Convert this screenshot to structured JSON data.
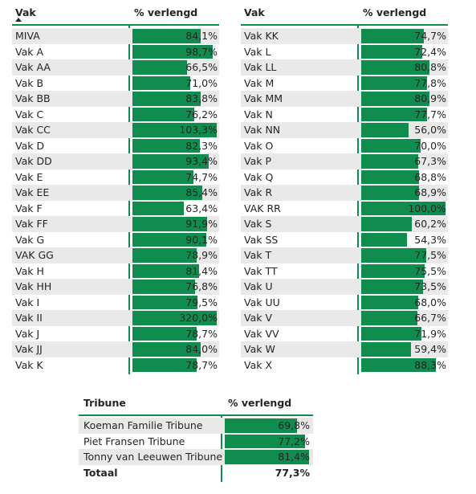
{
  "accent_color": "#118C4F",
  "row_alt_color": "#E9E9E9",
  "table_left": {
    "col_name": "Vak",
    "col_value": "% verlengd",
    "rows": [
      {
        "name": "MIVA",
        "value": "84,1%",
        "pct": 84.1
      },
      {
        "name": "Vak A",
        "value": "98,7%",
        "pct": 98.7
      },
      {
        "name": "Vak AA",
        "value": "66,5%",
        "pct": 66.5
      },
      {
        "name": "Vak B",
        "value": "71,0%",
        "pct": 71.0
      },
      {
        "name": "Vak BB",
        "value": "83,8%",
        "pct": 83.8
      },
      {
        "name": "Vak C",
        "value": "76,2%",
        "pct": 76.2
      },
      {
        "name": "Vak CC",
        "value": "103,3%",
        "pct": 103.3
      },
      {
        "name": "Vak D",
        "value": "82,3%",
        "pct": 82.3
      },
      {
        "name": "Vak DD",
        "value": "93,4%",
        "pct": 93.4
      },
      {
        "name": "Vak E",
        "value": "74,7%",
        "pct": 74.7
      },
      {
        "name": "Vak EE",
        "value": "85,4%",
        "pct": 85.4
      },
      {
        "name": "Vak F",
        "value": "63,4%",
        "pct": 63.4
      },
      {
        "name": "Vak FF",
        "value": "91,9%",
        "pct": 91.9
      },
      {
        "name": "Vak G",
        "value": "90,1%",
        "pct": 90.1
      },
      {
        "name": "VAK GG",
        "value": "78,9%",
        "pct": 78.9
      },
      {
        "name": "Vak H",
        "value": "81,4%",
        "pct": 81.4
      },
      {
        "name": "Vak HH",
        "value": "76,8%",
        "pct": 76.8
      },
      {
        "name": "Vak I",
        "value": "79,5%",
        "pct": 79.5
      },
      {
        "name": "Vak II",
        "value": "320,0%",
        "pct": 320.0
      },
      {
        "name": "Vak J",
        "value": "78,7%",
        "pct": 78.7
      },
      {
        "name": "Vak JJ",
        "value": "84,0%",
        "pct": 84.0
      },
      {
        "name": "Vak K",
        "value": "78,7%",
        "pct": 78.7
      }
    ]
  },
  "table_right": {
    "col_name": "Vak",
    "col_value": "% verlengd",
    "rows": [
      {
        "name": "Vak KK",
        "value": "74,7%",
        "pct": 74.7
      },
      {
        "name": "Vak L",
        "value": "72,4%",
        "pct": 72.4
      },
      {
        "name": "Vak LL",
        "value": "80,8%",
        "pct": 80.8
      },
      {
        "name": "Vak M",
        "value": "77,8%",
        "pct": 77.8
      },
      {
        "name": "Vak MM",
        "value": "80,9%",
        "pct": 80.9
      },
      {
        "name": "Vak N",
        "value": "77,7%",
        "pct": 77.7
      },
      {
        "name": "Vak NN",
        "value": "56,0%",
        "pct": 56.0
      },
      {
        "name": "Vak O",
        "value": "70,0%",
        "pct": 70.0
      },
      {
        "name": "Vak P",
        "value": "67,3%",
        "pct": 67.3
      },
      {
        "name": "Vak Q",
        "value": "68,8%",
        "pct": 68.8
      },
      {
        "name": "Vak R",
        "value": "68,9%",
        "pct": 68.9
      },
      {
        "name": "VAK RR",
        "value": "100,0%",
        "pct": 100.0
      },
      {
        "name": "Vak S",
        "value": "60,2%",
        "pct": 60.2
      },
      {
        "name": "Vak SS",
        "value": "54,3%",
        "pct": 54.3
      },
      {
        "name": "Vak T",
        "value": "77,5%",
        "pct": 77.5
      },
      {
        "name": "Vak TT",
        "value": "75,5%",
        "pct": 75.5
      },
      {
        "name": "Vak U",
        "value": "73,5%",
        "pct": 73.5
      },
      {
        "name": "Vak UU",
        "value": "68,0%",
        "pct": 68.0
      },
      {
        "name": "Vak V",
        "value": "66,7%",
        "pct": 66.7
      },
      {
        "name": "Vak VV",
        "value": "71,9%",
        "pct": 71.9
      },
      {
        "name": "Vak W",
        "value": "59,4%",
        "pct": 59.4
      },
      {
        "name": "Vak X",
        "value": "88,3%",
        "pct": 88.3
      }
    ]
  },
  "table_tribune": {
    "col_name": "Tribune",
    "col_value": "% verlengd",
    "rows": [
      {
        "name": "Koeman Familie Tribune",
        "value": "69,8%",
        "pct": 69.8
      },
      {
        "name": "Piet Fransen Tribune",
        "value": "77,2%",
        "pct": 77.2
      },
      {
        "name": "Tonny van Leeuwen Tribune",
        "value": "81,4%",
        "pct": 81.4
      }
    ],
    "total_label": "Totaal",
    "total_value": "77,3%"
  }
}
